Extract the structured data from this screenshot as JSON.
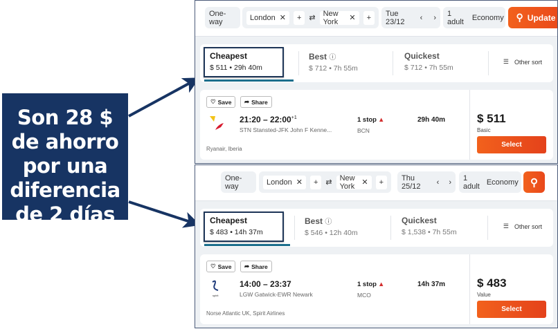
{
  "callout": {
    "text": "Son 28 $ de ahorro por una diferencia de 2 días",
    "color": "#173463"
  },
  "accent": "#f2611c",
  "panels": [
    {
      "trip_type": "One-way",
      "origin": "London",
      "destination": "New York",
      "date": "Tue 23/12",
      "passengers": "1 adult",
      "cabin": "Economy",
      "search_label": "Update",
      "sort": [
        {
          "label": "Cheapest",
          "sub": "$ 511 • 29h 40m"
        },
        {
          "label": "Best",
          "sub": "$ 712 • 7h 55m"
        },
        {
          "label": "Quickest",
          "sub": "$ 712 • 7h 55m"
        }
      ],
      "other_sort": "Other sort",
      "result": {
        "save": "Save",
        "share": "Share",
        "times": "21:20 – 22:00",
        "day_offset": "+1",
        "route": "STN Stansted-JFK John F Kenne...",
        "stops": "1 stop",
        "via": "BCN",
        "duration": "29h 40m",
        "airlines": "Ryanair, Iberia",
        "price": "$ 511",
        "fare": "Basic",
        "select": "Select"
      }
    },
    {
      "trip_type": "One-way",
      "origin": "London",
      "destination": "New York",
      "date": "Thu 25/12",
      "passengers": "1 adult",
      "cabin": "Economy",
      "sort": [
        {
          "label": "Cheapest",
          "sub": "$ 483 • 14h 37m"
        },
        {
          "label": "Best",
          "sub": "$ 546 • 12h 40m"
        },
        {
          "label": "Quickest",
          "sub": "$ 1,538 • 7h 55m"
        }
      ],
      "other_sort": "Other sort",
      "result": {
        "save": "Save",
        "share": "Share",
        "times": "14:00 – 23:37",
        "route": "LGW Gatwick-EWR Newark",
        "stops": "1 stop",
        "via": "MCO",
        "duration": "14h 37m",
        "airlines": "Norse Atlantic UK, Spirit Airlines",
        "price": "$ 483",
        "fare": "Value",
        "select": "Select",
        "logo_text": "spirit"
      }
    }
  ]
}
